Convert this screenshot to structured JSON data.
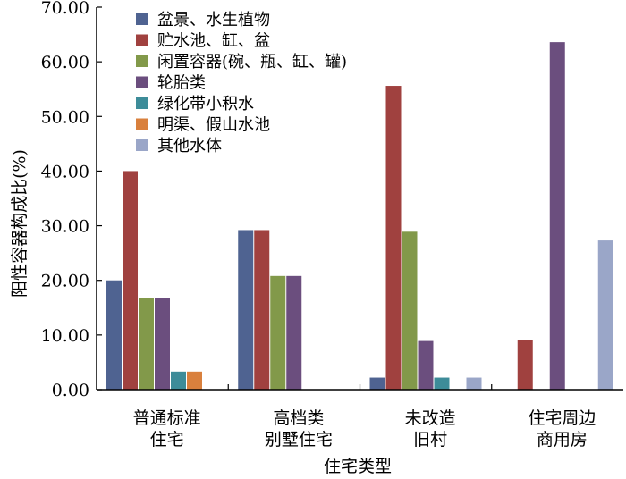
{
  "chart_data": {
    "type": "bar",
    "title": "",
    "xlabel": "住宅类型",
    "ylabel": "阳性容器构成比(%)",
    "ylim": [
      0,
      70
    ],
    "yticks": [
      "0.00",
      "10.00",
      "20.00",
      "30.00",
      "40.00",
      "50.00",
      "60.00",
      "70.00"
    ],
    "grid": false,
    "legend_position": "top-left",
    "categories": [
      [
        "普通标准",
        "住宅"
      ],
      [
        "高档类",
        "别墅住宅"
      ],
      [
        "未改造",
        "旧村"
      ],
      [
        "住宅周边",
        "商用房"
      ]
    ],
    "series": [
      {
        "name": "盆景、水生植物",
        "color": "#4f6391",
        "values": [
          20.0,
          29.2,
          2.2,
          0
        ]
      },
      {
        "name": "贮水池、缸、盆",
        "color": "#a0413f",
        "values": [
          40.0,
          29.2,
          55.6,
          9.1
        ]
      },
      {
        "name": "闲置容器(碗、瓶、缸、罐)",
        "color": "#82994a",
        "values": [
          16.7,
          20.8,
          28.9,
          0
        ]
      },
      {
        "name": "轮胎类",
        "color": "#6b4e7e",
        "values": [
          16.7,
          20.8,
          8.9,
          63.6
        ]
      },
      {
        "name": "绿化带小积水",
        "color": "#3d8c99",
        "values": [
          3.3,
          0,
          2.2,
          0
        ]
      },
      {
        "name": "明渠、假山水池",
        "color": "#d9803d",
        "values": [
          3.3,
          0,
          0,
          0
        ]
      },
      {
        "name": "其他水体",
        "color": "#9aa6c8",
        "values": [
          0,
          0,
          2.2,
          27.3
        ]
      }
    ]
  }
}
